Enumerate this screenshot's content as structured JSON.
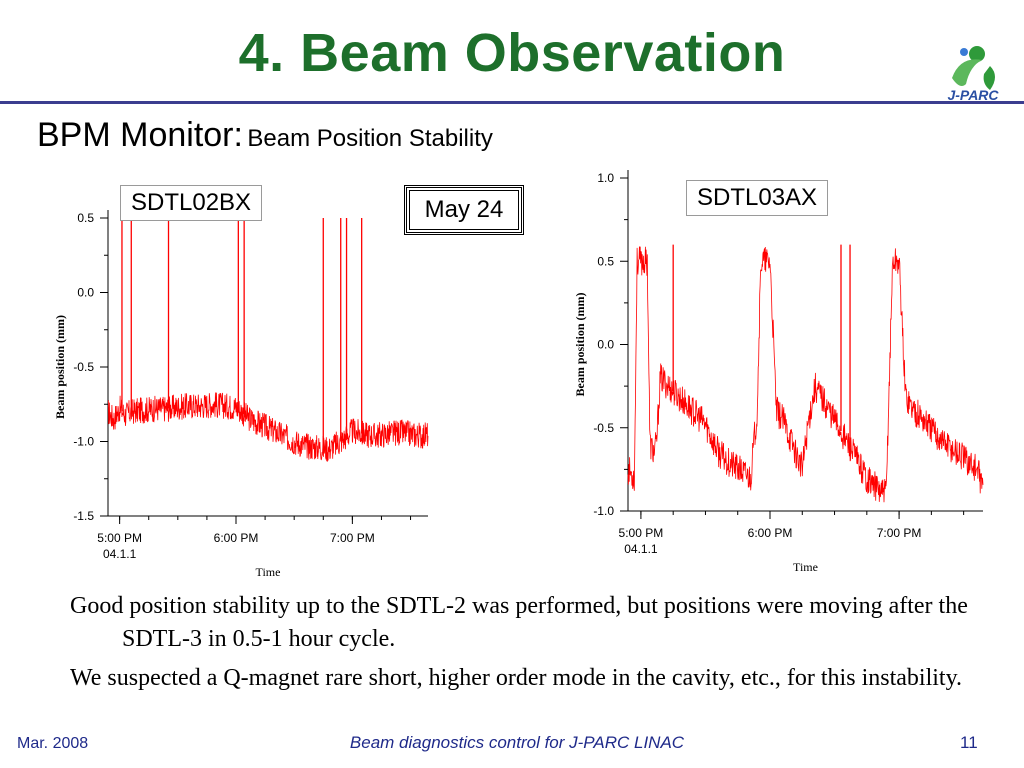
{
  "slide": {
    "title": "4. Beam Observation",
    "subtitle_main": "BPM Monitor:",
    "subtitle_sub": "Beam Position Stability",
    "logo_text": "J-PARC",
    "date_box": "May 24",
    "paragraphs": [
      "Good position stability up to the SDTL-2 was performed, but positions were moving after the SDTL-3 in 0.5-1 hour cycle.",
      "We suspected a Q-magnet rare short, higher order mode in the cavity, etc., for this instability."
    ],
    "footer": {
      "left": "Mar. 2008",
      "center": "Beam diagnostics control for J-PARC LINAC",
      "right": "11"
    }
  },
  "colors": {
    "title": "#1d6f2b",
    "rule": "#3b3d8f",
    "trace": "#ff0000",
    "footer": "#1f2a8a"
  },
  "chart_data": [
    {
      "type": "line",
      "label": "SDTL02BX",
      "xlabel": "Time",
      "ylabel": "Beam position (mm)",
      "ylim": [
        -1.5,
        0.5
      ],
      "y_ticks": [
        0.5,
        0.0,
        -0.5,
        -1.0,
        -1.5
      ],
      "y_tick_labels": [
        "0.5",
        "0.0",
        "-0.5",
        "-1.0",
        "-1.5"
      ],
      "xlim": [
        16.9,
        19.65
      ],
      "x_ticks": [
        17,
        18,
        19
      ],
      "x_tick_labels": [
        "5:00 PM",
        "6:00 PM",
        "7:00 PM"
      ],
      "x_sub_label": "04.1.1",
      "series": [
        {
          "x": [
            16.9,
            16.95,
            17.0,
            17.05,
            17.1,
            17.2,
            17.3,
            17.4,
            17.5,
            17.6,
            17.7,
            17.8,
            17.9,
            18.0,
            18.05,
            18.1,
            18.2,
            18.3,
            18.4,
            18.5,
            18.6,
            18.7,
            18.8,
            18.9,
            19.0,
            19.1,
            19.2,
            19.3,
            19.4,
            19.5,
            19.6,
            19.65
          ],
          "y": [
            -0.8,
            -0.85,
            -0.78,
            -0.82,
            -0.8,
            -0.79,
            -0.78,
            -0.78,
            -0.77,
            -0.76,
            -0.76,
            -0.75,
            -0.76,
            -0.77,
            -0.8,
            -0.84,
            -0.88,
            -0.92,
            -0.96,
            -1.0,
            -1.03,
            -1.04,
            -1.05,
            -1.0,
            -0.93,
            -0.95,
            -0.96,
            -0.95,
            -0.94,
            -0.95,
            -0.96,
            -0.95
          ]
        }
      ],
      "spikes_x": [
        17.02,
        17.1,
        17.42,
        18.02,
        18.07,
        18.75,
        18.9,
        18.95,
        19.08
      ],
      "spike_top": 0.5
    },
    {
      "type": "line",
      "label": "SDTL03AX",
      "xlabel": "Time",
      "ylabel": "Beam position (mm)",
      "ylim": [
        -1.0,
        1.0
      ],
      "y_ticks": [
        1.0,
        0.5,
        0.0,
        -0.5,
        -1.0
      ],
      "y_tick_labels": [
        "1.0",
        "0.5",
        "0.0",
        "-0.5",
        "-1.0"
      ],
      "xlim": [
        16.9,
        19.65
      ],
      "x_ticks": [
        17,
        18,
        19
      ],
      "x_tick_labels": [
        "5:00 PM",
        "6:00 PM",
        "7:00 PM"
      ],
      "x_sub_label": "04.1.1",
      "series": [
        {
          "x": [
            16.9,
            16.95,
            16.97,
            17.0,
            17.05,
            17.07,
            17.1,
            17.12,
            17.15,
            17.25,
            17.35,
            17.45,
            17.5,
            17.6,
            17.7,
            17.85,
            17.9,
            17.93,
            17.95,
            18.0,
            18.05,
            18.1,
            18.15,
            18.2,
            18.25,
            18.3,
            18.35,
            18.45,
            18.55,
            18.65,
            18.75,
            18.85,
            18.9,
            18.95,
            19.0,
            19.05,
            19.1,
            19.2,
            19.3,
            19.4,
            19.5,
            19.6,
            19.65
          ],
          "y": [
            -0.75,
            -0.8,
            0.5,
            0.5,
            0.5,
            -0.6,
            -0.65,
            -0.6,
            -0.2,
            -0.28,
            -0.36,
            -0.44,
            -0.48,
            -0.65,
            -0.72,
            -0.8,
            -0.4,
            0.5,
            0.5,
            0.5,
            -0.4,
            -0.45,
            -0.55,
            -0.65,
            -0.75,
            -0.45,
            -0.25,
            -0.38,
            -0.52,
            -0.66,
            -0.8,
            -0.88,
            -0.9,
            0.5,
            0.5,
            -0.3,
            -0.38,
            -0.46,
            -0.55,
            -0.62,
            -0.68,
            -0.75,
            -0.85
          ]
        }
      ],
      "spikes_x": [
        17.25,
        18.55,
        18.62
      ],
      "spike_top": 0.6
    }
  ]
}
